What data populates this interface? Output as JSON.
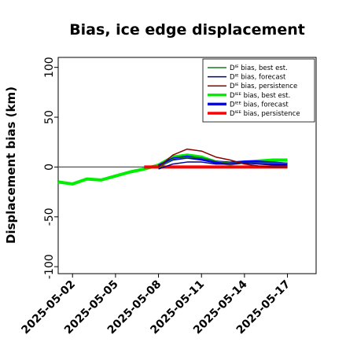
{
  "chart_data": {
    "type": "line",
    "title": "Bias, ice edge displacement",
    "ylabel": "Displacement bias (km)",
    "xlabel": "",
    "ylim": [
      -107,
      110
    ],
    "xlim": [
      "2025-05-01",
      "2025-05-19"
    ],
    "yticks": [
      -100,
      -50,
      0,
      50,
      100
    ],
    "xticks": [
      "2025-05-02",
      "2025-05-05",
      "2025-05-08",
      "2025-05-11",
      "2025-05-14",
      "2025-05-17"
    ],
    "highlighted_xtick": "2025-05-08",
    "highlight_color": "#228B22",
    "grid": false,
    "legend_position": "top-right",
    "reference_line": {
      "y": 0,
      "from": "2025-05-01",
      "to": "2025-05-17",
      "color": "#555555"
    },
    "series": [
      {
        "name": "Dᴵᴱ bias, best est.",
        "color": "#1a7a1a",
        "width": 1.5,
        "x": [
          "2025-05-08",
          "2025-05-09",
          "2025-05-10",
          "2025-05-11",
          "2025-05-12",
          "2025-05-13",
          "2025-05-14",
          "2025-05-15",
          "2025-05-16",
          "2025-05-17"
        ],
        "y": [
          -1,
          8,
          10,
          9,
          6,
          4,
          4,
          4,
          4,
          4
        ]
      },
      {
        "name": "Dᴵᴱ bias, forecast",
        "color": "#00008b",
        "width": 1.5,
        "x": [
          "2025-05-08",
          "2025-05-09",
          "2025-05-10",
          "2025-05-11",
          "2025-05-12",
          "2025-05-13",
          "2025-05-14",
          "2025-05-15",
          "2025-05-16",
          "2025-05-17"
        ],
        "y": [
          -2,
          3,
          5,
          5,
          3,
          3,
          4,
          3,
          2,
          2
        ]
      },
      {
        "name": "Dᴵᴱ bias, persistence",
        "color": "#8b0000",
        "width": 1.5,
        "x": [
          "2025-05-08",
          "2025-05-09",
          "2025-05-10",
          "2025-05-11",
          "2025-05-12",
          "2025-05-13",
          "2025-05-14",
          "2025-05-15",
          "2025-05-16",
          "2025-05-17"
        ],
        "y": [
          0,
          12,
          18,
          16,
          10,
          7,
          3,
          1,
          0,
          0
        ]
      },
      {
        "name": "Dᴵᴱᴱ bias, best est.",
        "color": "#00ee00",
        "width": 4,
        "x": [
          "2025-05-01",
          "2025-05-02",
          "2025-05-03",
          "2025-05-04",
          "2025-05-05",
          "2025-05-06",
          "2025-05-07",
          "2025-05-08",
          "2025-05-09",
          "2025-05-10",
          "2025-05-11",
          "2025-05-12",
          "2025-05-13",
          "2025-05-14",
          "2025-05-15",
          "2025-05-16",
          "2025-05-17"
        ],
        "y": [
          -15,
          -17,
          -12,
          -13,
          -9,
          -5,
          -2,
          2,
          10,
          12,
          10,
          5,
          3,
          5,
          6,
          7,
          7
        ]
      },
      {
        "name": "Dᴵᴱᴱ bias, forecast",
        "color": "#0000ff",
        "width": 4,
        "x": [
          "2025-05-08",
          "2025-05-09",
          "2025-05-10",
          "2025-05-11",
          "2025-05-12",
          "2025-05-13",
          "2025-05-14",
          "2025-05-15",
          "2025-05-16",
          "2025-05-17"
        ],
        "y": [
          1,
          8,
          10,
          8,
          5,
          4,
          5,
          5,
          4,
          3
        ]
      },
      {
        "name": "Dᴵᴱᴱ bias, persistence",
        "color": "#ff0000",
        "width": 4,
        "x": [
          "2025-05-07",
          "2025-05-08",
          "2025-05-09",
          "2025-05-10",
          "2025-05-11",
          "2025-05-12",
          "2025-05-13",
          "2025-05-14",
          "2025-05-15",
          "2025-05-16",
          "2025-05-17"
        ],
        "y": [
          0,
          0,
          0,
          0,
          0,
          0,
          0,
          0,
          0,
          0,
          0
        ]
      }
    ]
  }
}
